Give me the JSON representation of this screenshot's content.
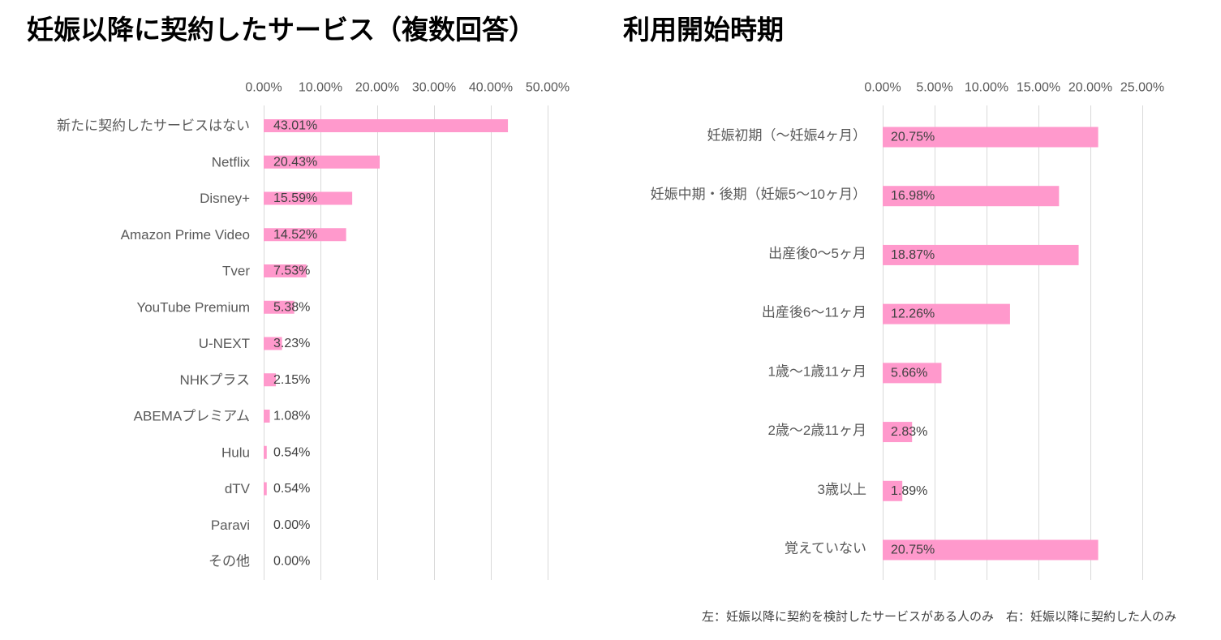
{
  "chart_data": [
    {
      "type": "bar",
      "orientation": "horizontal",
      "title": "妊娠以降に契約したサービス（複数回答）",
      "categories": [
        "新たに契約したサービスはない",
        "Netflix",
        "Disney+",
        "Amazon Prime Video",
        "Tver",
        "YouTube Premium",
        "U-NEXT",
        "NHKプラス",
        "ABEMAプレミアム",
        "Hulu",
        "dTV",
        "Paravi",
        "その他"
      ],
      "values": [
        43.01,
        20.43,
        15.59,
        14.52,
        7.53,
        5.38,
        3.23,
        2.15,
        1.08,
        0.54,
        0.54,
        0.0,
        0.0
      ],
      "data_labels": [
        "43.01%",
        "20.43%",
        "15.59%",
        "14.52%",
        "7.53%",
        "5.38%",
        "3.23%",
        "2.15%",
        "1.08%",
        "0.54%",
        "0.54%",
        "0.00%",
        "0.00%"
      ],
      "xlim": [
        0,
        50
      ],
      "xticks": [
        0,
        10,
        20,
        30,
        40,
        50
      ],
      "xtick_labels": [
        "0.00%",
        "10.00%",
        "20.00%",
        "30.00%",
        "40.00%",
        "50.00%"
      ],
      "xaxis_position": "top",
      "grid": true,
      "bar_color": "#FF99CC"
    },
    {
      "type": "bar",
      "orientation": "horizontal",
      "title": "利用開始時期",
      "categories": [
        "妊娠初期（～妊娠4ヶ月）",
        "妊娠中期・後期（妊娠5～10ヶ月）",
        "出産後0～5ヶ月",
        "出産後6～11ヶ月",
        "1歳～1歳11ヶ月",
        "2歳～2歳11ヶ月",
        "3歳以上",
        "覚えていない"
      ],
      "values": [
        20.75,
        16.98,
        18.87,
        12.26,
        5.66,
        2.83,
        1.89,
        20.75
      ],
      "data_labels": [
        "20.75%",
        "16.98%",
        "18.87%",
        "12.26%",
        "5.66%",
        "2.83%",
        "1.89%",
        "20.75%"
      ],
      "xlim": [
        0,
        25
      ],
      "xticks": [
        0,
        5,
        10,
        15,
        20,
        25
      ],
      "xtick_labels": [
        "0.00%",
        "5.00%",
        "10.00%",
        "15.00%",
        "20.00%",
        "25.00%"
      ],
      "xaxis_position": "top",
      "grid": true,
      "bar_color": "#FF99CC"
    }
  ],
  "footnote": "左：妊娠以降に契約を検討したサービスがある人のみ　右：妊娠以降に契約した人のみ",
  "colors": {
    "title": "#000000",
    "axis_text": "#595959",
    "value_text": "#404040",
    "gridline": "#D9D9D9"
  }
}
